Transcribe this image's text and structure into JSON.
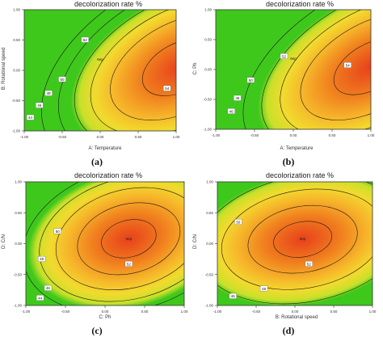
{
  "chart_data": [
    {
      "type": "contour",
      "panel_label": "(a)",
      "title": "decolorization rate   %",
      "xlabel": "A: Temperature",
      "ylabel": "B: Rotational speed",
      "x_ticks": [
        "-1.00",
        "-0.50",
        "0.00",
        "0.50",
        "1.00"
      ],
      "y_ticks": [
        "-1.00",
        "-0.50",
        "0.00",
        "0.50",
        "1.00"
      ],
      "xlim": [
        -1,
        1
      ],
      "ylim": [
        -1,
        1
      ],
      "center_marker": "6ep",
      "contour_labels": [
        {
          "text": "52",
          "x": -0.2,
          "y": 0.5
        },
        {
          "text": "50",
          "x": -0.5,
          "y": -0.15
        },
        {
          "text": "48",
          "x": -0.68,
          "y": -0.38
        },
        {
          "text": "46",
          "x": -0.8,
          "y": -0.58
        },
        {
          "text": "44",
          "x": -0.92,
          "y": -0.78
        },
        {
          "text": "54",
          "x": 0.88,
          "y": -0.3
        }
      ],
      "optimum": {
        "x": 1.0,
        "y": 0.05
      }
    },
    {
      "type": "contour",
      "panel_label": "(b)",
      "title": "decolorization rate   %",
      "xlabel": "A: Temperature",
      "ylabel": "C: Ph",
      "x_ticks": [
        "-1.00",
        "-0.50",
        "0.00",
        "0.50",
        "1.00"
      ],
      "y_ticks": [
        "-1.00",
        "-0.50",
        "0.00",
        "0.50",
        "1.00"
      ],
      "xlim": [
        -1,
        1
      ],
      "ylim": [
        -1,
        1
      ],
      "center_marker": "6ep",
      "contour_labels": [
        {
          "text": "52",
          "x": -0.12,
          "y": 0.22
        },
        {
          "text": "50",
          "x": -0.55,
          "y": -0.18
        },
        {
          "text": "48",
          "x": -0.72,
          "y": -0.48
        },
        {
          "text": "46",
          "x": -0.8,
          "y": -0.7
        },
        {
          "text": "54",
          "x": 0.7,
          "y": 0.07
        }
      ],
      "optimum": {
        "x": 1.0,
        "y": 0.05
      }
    },
    {
      "type": "contour",
      "panel_label": "(c)",
      "title": "decolorization rate   %",
      "xlabel": "C: Ph",
      "ylabel": "D: C/N",
      "x_ticks": [
        "-1.00",
        "-0.50",
        "0.00",
        "0.50",
        "1.00"
      ],
      "y_ticks": [
        "-1.00",
        "-0.50",
        "0.00",
        "0.50",
        "1.00"
      ],
      "xlim": [
        -1,
        1
      ],
      "ylim": [
        -1,
        1
      ],
      "center_marker": "6ep",
      "contour_labels": [
        {
          "text": "52",
          "x": 0.3,
          "y": -0.33
        },
        {
          "text": "50",
          "x": -0.6,
          "y": 0.2
        },
        {
          "text": "48",
          "x": -0.8,
          "y": -0.25
        },
        {
          "text": "46",
          "x": -0.72,
          "y": -0.72
        },
        {
          "text": "44",
          "x": -0.82,
          "y": -0.88
        }
      ],
      "optimum": {
        "x": 0.3,
        "y": 0.08
      }
    },
    {
      "type": "contour",
      "panel_label": "(d)",
      "title": "decolorization rate   %",
      "xlabel": "B: Rotational speed",
      "ylabel": "D: C/N",
      "x_ticks": [
        "-1.00",
        "-0.50",
        "0.00",
        "0.50",
        "1.00"
      ],
      "y_ticks": [
        "-1.00",
        "-0.50",
        "0.00",
        "0.50",
        "1.00"
      ],
      "xlim": [
        -1,
        1
      ],
      "ylim": [
        -1,
        1
      ],
      "center_marker": "6ep",
      "contour_labels": [
        {
          "text": "52",
          "x": 0.18,
          "y": -0.33
        },
        {
          "text": "50",
          "x": -0.73,
          "y": 0.35
        },
        {
          "text": "48",
          "x": -0.4,
          "y": -0.73
        },
        {
          "text": "46",
          "x": -0.8,
          "y": -0.85
        }
      ],
      "optimum": {
        "x": 0.1,
        "y": 0.07
      }
    }
  ]
}
